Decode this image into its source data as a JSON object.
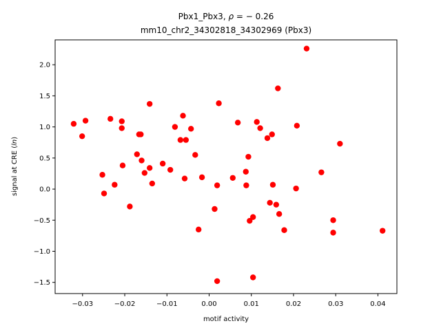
{
  "chart_data": {
    "type": "scatter",
    "title_line1_prefix": "Pbx1_Pbx3, ",
    "title_line1_rho": "ρ",
    "title_line1_value": " = − 0.26",
    "title_line2": "mm10_chr2_34302818_34302969 (Pbx3)",
    "xlabel": "motif activity",
    "ylabel_prefix": "signal at CRE (",
    "ylabel_italic": "ln",
    "ylabel_suffix": ")",
    "xlim": [
      -0.0365,
      0.0445
    ],
    "ylim": [
      -1.68,
      2.4
    ],
    "xticks": [
      -0.03,
      -0.02,
      -0.01,
      0.0,
      0.01,
      0.02,
      0.03,
      0.04
    ],
    "xtick_labels": [
      "−0.03",
      "−0.02",
      "−0.01",
      "0.00",
      "0.01",
      "0.02",
      "0.03",
      "0.04"
    ],
    "yticks": [
      -1.5,
      -1.0,
      -0.5,
      0.0,
      0.5,
      1.0,
      1.5,
      2.0
    ],
    "ytick_labels": [
      "−1.5",
      "−1.0",
      "−0.5",
      "0.0",
      "0.5",
      "1.0",
      "1.5",
      "2.0"
    ],
    "grid": false,
    "marker_color": "#ff0000",
    "points": [
      {
        "x": -0.0321,
        "y": 1.05
      },
      {
        "x": -0.0301,
        "y": 0.85
      },
      {
        "x": -0.0293,
        "y": 1.1
      },
      {
        "x": -0.0253,
        "y": 0.23
      },
      {
        "x": -0.0249,
        "y": -0.07
      },
      {
        "x": -0.0234,
        "y": 1.13
      },
      {
        "x": -0.0224,
        "y": 0.07
      },
      {
        "x": -0.0207,
        "y": 1.09
      },
      {
        "x": -0.0207,
        "y": 0.98
      },
      {
        "x": -0.0205,
        "y": 0.38
      },
      {
        "x": -0.0188,
        "y": -0.28
      },
      {
        "x": -0.0171,
        "y": 0.56
      },
      {
        "x": -0.0166,
        "y": 0.88
      },
      {
        "x": -0.0162,
        "y": 0.88
      },
      {
        "x": -0.016,
        "y": 0.46
      },
      {
        "x": -0.0153,
        "y": 0.26
      },
      {
        "x": -0.0141,
        "y": 1.37
      },
      {
        "x": -0.0141,
        "y": 0.34
      },
      {
        "x": -0.0135,
        "y": 0.09
      },
      {
        "x": -0.011,
        "y": 0.41
      },
      {
        "x": -0.0092,
        "y": 0.31
      },
      {
        "x": -0.0081,
        "y": 1.0
      },
      {
        "x": -0.0068,
        "y": 0.79
      },
      {
        "x": -0.0062,
        "y": 1.18
      },
      {
        "x": -0.0058,
        "y": 0.17
      },
      {
        "x": -0.0055,
        "y": 0.79
      },
      {
        "x": -0.0043,
        "y": 0.97
      },
      {
        "x": -0.0033,
        "y": 0.55
      },
      {
        "x": -0.0025,
        "y": -0.65
      },
      {
        "x": -0.0017,
        "y": 0.19
      },
      {
        "x": 0.0013,
        "y": -0.32
      },
      {
        "x": 0.0019,
        "y": 0.06
      },
      {
        "x": 0.0019,
        "y": -1.48
      },
      {
        "x": 0.0023,
        "y": 1.38
      },
      {
        "x": 0.0056,
        "y": 0.18
      },
      {
        "x": 0.0068,
        "y": 1.07
      },
      {
        "x": 0.0087,
        "y": 0.28
      },
      {
        "x": 0.0088,
        "y": 0.06
      },
      {
        "x": 0.0093,
        "y": 0.52
      },
      {
        "x": 0.0096,
        "y": -0.51
      },
      {
        "x": 0.0104,
        "y": -0.45
      },
      {
        "x": 0.0104,
        "y": -1.42
      },
      {
        "x": 0.0113,
        "y": 1.08
      },
      {
        "x": 0.0121,
        "y": 0.98
      },
      {
        "x": 0.0138,
        "y": 0.82
      },
      {
        "x": 0.0144,
        "y": -0.22
      },
      {
        "x": 0.0149,
        "y": 0.88
      },
      {
        "x": 0.0151,
        "y": 0.07
      },
      {
        "x": 0.0159,
        "y": -0.25
      },
      {
        "x": 0.0163,
        "y": 1.62
      },
      {
        "x": 0.0166,
        "y": -0.4
      },
      {
        "x": 0.0178,
        "y": -0.66
      },
      {
        "x": 0.0206,
        "y": 0.01
      },
      {
        "x": 0.0208,
        "y": 1.02
      },
      {
        "x": 0.0231,
        "y": 2.26
      },
      {
        "x": 0.0266,
        "y": 0.27
      },
      {
        "x": 0.0294,
        "y": -0.5
      },
      {
        "x": 0.0294,
        "y": -0.7
      },
      {
        "x": 0.031,
        "y": 0.73
      },
      {
        "x": 0.0411,
        "y": -0.67
      }
    ]
  }
}
